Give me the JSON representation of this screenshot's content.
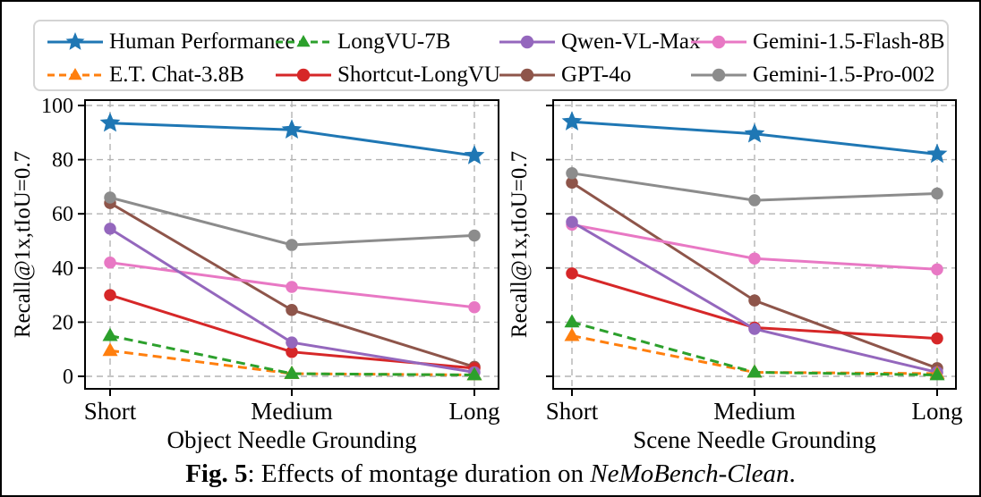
{
  "ylabel": "Recall@1x,tIoU=0.7",
  "legend": {
    "columns": [
      [
        "Human Performance",
        "E.T. Chat-3.8B"
      ],
      [
        "LongVU-7B",
        "Shortcut-LongVU"
      ],
      [
        "Qwen-VL-Max",
        "GPT-4o"
      ],
      [
        "Gemini-1.5-Flash-8B",
        "Gemini-1.5-Pro-002"
      ]
    ]
  },
  "series_styles": {
    "Human Performance": {
      "color": "#1f77b4",
      "marker": "star",
      "dash": false
    },
    "E.T. Chat-3.8B": {
      "color": "#ff7f0e",
      "marker": "triangle",
      "dash": true
    },
    "LongVU-7B": {
      "color": "#2ca02c",
      "marker": "triangle",
      "dash": true
    },
    "Shortcut-LongVU": {
      "color": "#d62728",
      "marker": "circle",
      "dash": false
    },
    "Qwen-VL-Max": {
      "color": "#9467bd",
      "marker": "circle",
      "dash": false
    },
    "GPT-4o": {
      "color": "#8e554a",
      "marker": "circle",
      "dash": false
    },
    "Gemini-1.5-Flash-8B": {
      "color": "#e878c4",
      "marker": "circle",
      "dash": false
    },
    "Gemini-1.5-Pro-002": {
      "color": "#8c8c8c",
      "marker": "circle",
      "dash": false
    }
  },
  "chart_data": [
    {
      "type": "line",
      "xlabel": "Object Needle Grounding",
      "ylabel": "Recall@1x,tIoU=0.7",
      "categories": [
        "Short",
        "Medium",
        "Long"
      ],
      "ylim": [
        0,
        100
      ],
      "yticks": [
        0,
        20,
        40,
        60,
        80,
        100
      ],
      "ytick_labels_visible": true,
      "grid": true,
      "series": [
        {
          "name": "Human Performance",
          "values": [
            93.5,
            91.0,
            81.5
          ]
        },
        {
          "name": "E.T. Chat-3.8B",
          "values": [
            9.5,
            1.0,
            0.5
          ]
        },
        {
          "name": "LongVU-7B",
          "values": [
            15.0,
            1.0,
            0.5
          ]
        },
        {
          "name": "Shortcut-LongVU",
          "values": [
            30.0,
            9.0,
            3.0
          ]
        },
        {
          "name": "Qwen-VL-Max",
          "values": [
            54.5,
            12.5,
            1.5
          ]
        },
        {
          "name": "GPT-4o",
          "values": [
            64.0,
            24.5,
            3.5
          ]
        },
        {
          "name": "Gemini-1.5-Flash-8B",
          "values": [
            42.0,
            33.0,
            25.5
          ]
        },
        {
          "name": "Gemini-1.5-Pro-002",
          "values": [
            66.0,
            48.5,
            52.0
          ]
        }
      ]
    },
    {
      "type": "line",
      "xlabel": "Scene Needle Grounding",
      "ylabel": "Recall@1x,tIoU=0.7",
      "categories": [
        "Short",
        "Medium",
        "Long"
      ],
      "ylim": [
        0,
        100
      ],
      "yticks": [
        0,
        20,
        40,
        60,
        80,
        100
      ],
      "ytick_labels_visible": false,
      "grid": true,
      "series": [
        {
          "name": "Human Performance",
          "values": [
            94.0,
            89.5,
            82.0
          ]
        },
        {
          "name": "E.T. Chat-3.8B",
          "values": [
            15.0,
            1.5,
            1.0
          ]
        },
        {
          "name": "LongVU-7B",
          "values": [
            20.0,
            1.5,
            0.5
          ]
        },
        {
          "name": "Shortcut-LongVU",
          "values": [
            38.0,
            18.0,
            14.0
          ]
        },
        {
          "name": "Qwen-VL-Max",
          "values": [
            57.0,
            17.5,
            1.5
          ]
        },
        {
          "name": "GPT-4o",
          "values": [
            71.5,
            28.0,
            3.0
          ]
        },
        {
          "name": "Gemini-1.5-Flash-8B",
          "values": [
            56.0,
            43.5,
            39.5
          ]
        },
        {
          "name": "Gemini-1.5-Pro-002",
          "values": [
            75.0,
            65.0,
            67.5
          ]
        }
      ]
    }
  ],
  "caption": {
    "fig_label": "Fig. 5",
    "colon": ": ",
    "text": "Effects of montage duration on ",
    "emphasis": "NeMoBench-Clean",
    "period": "."
  }
}
